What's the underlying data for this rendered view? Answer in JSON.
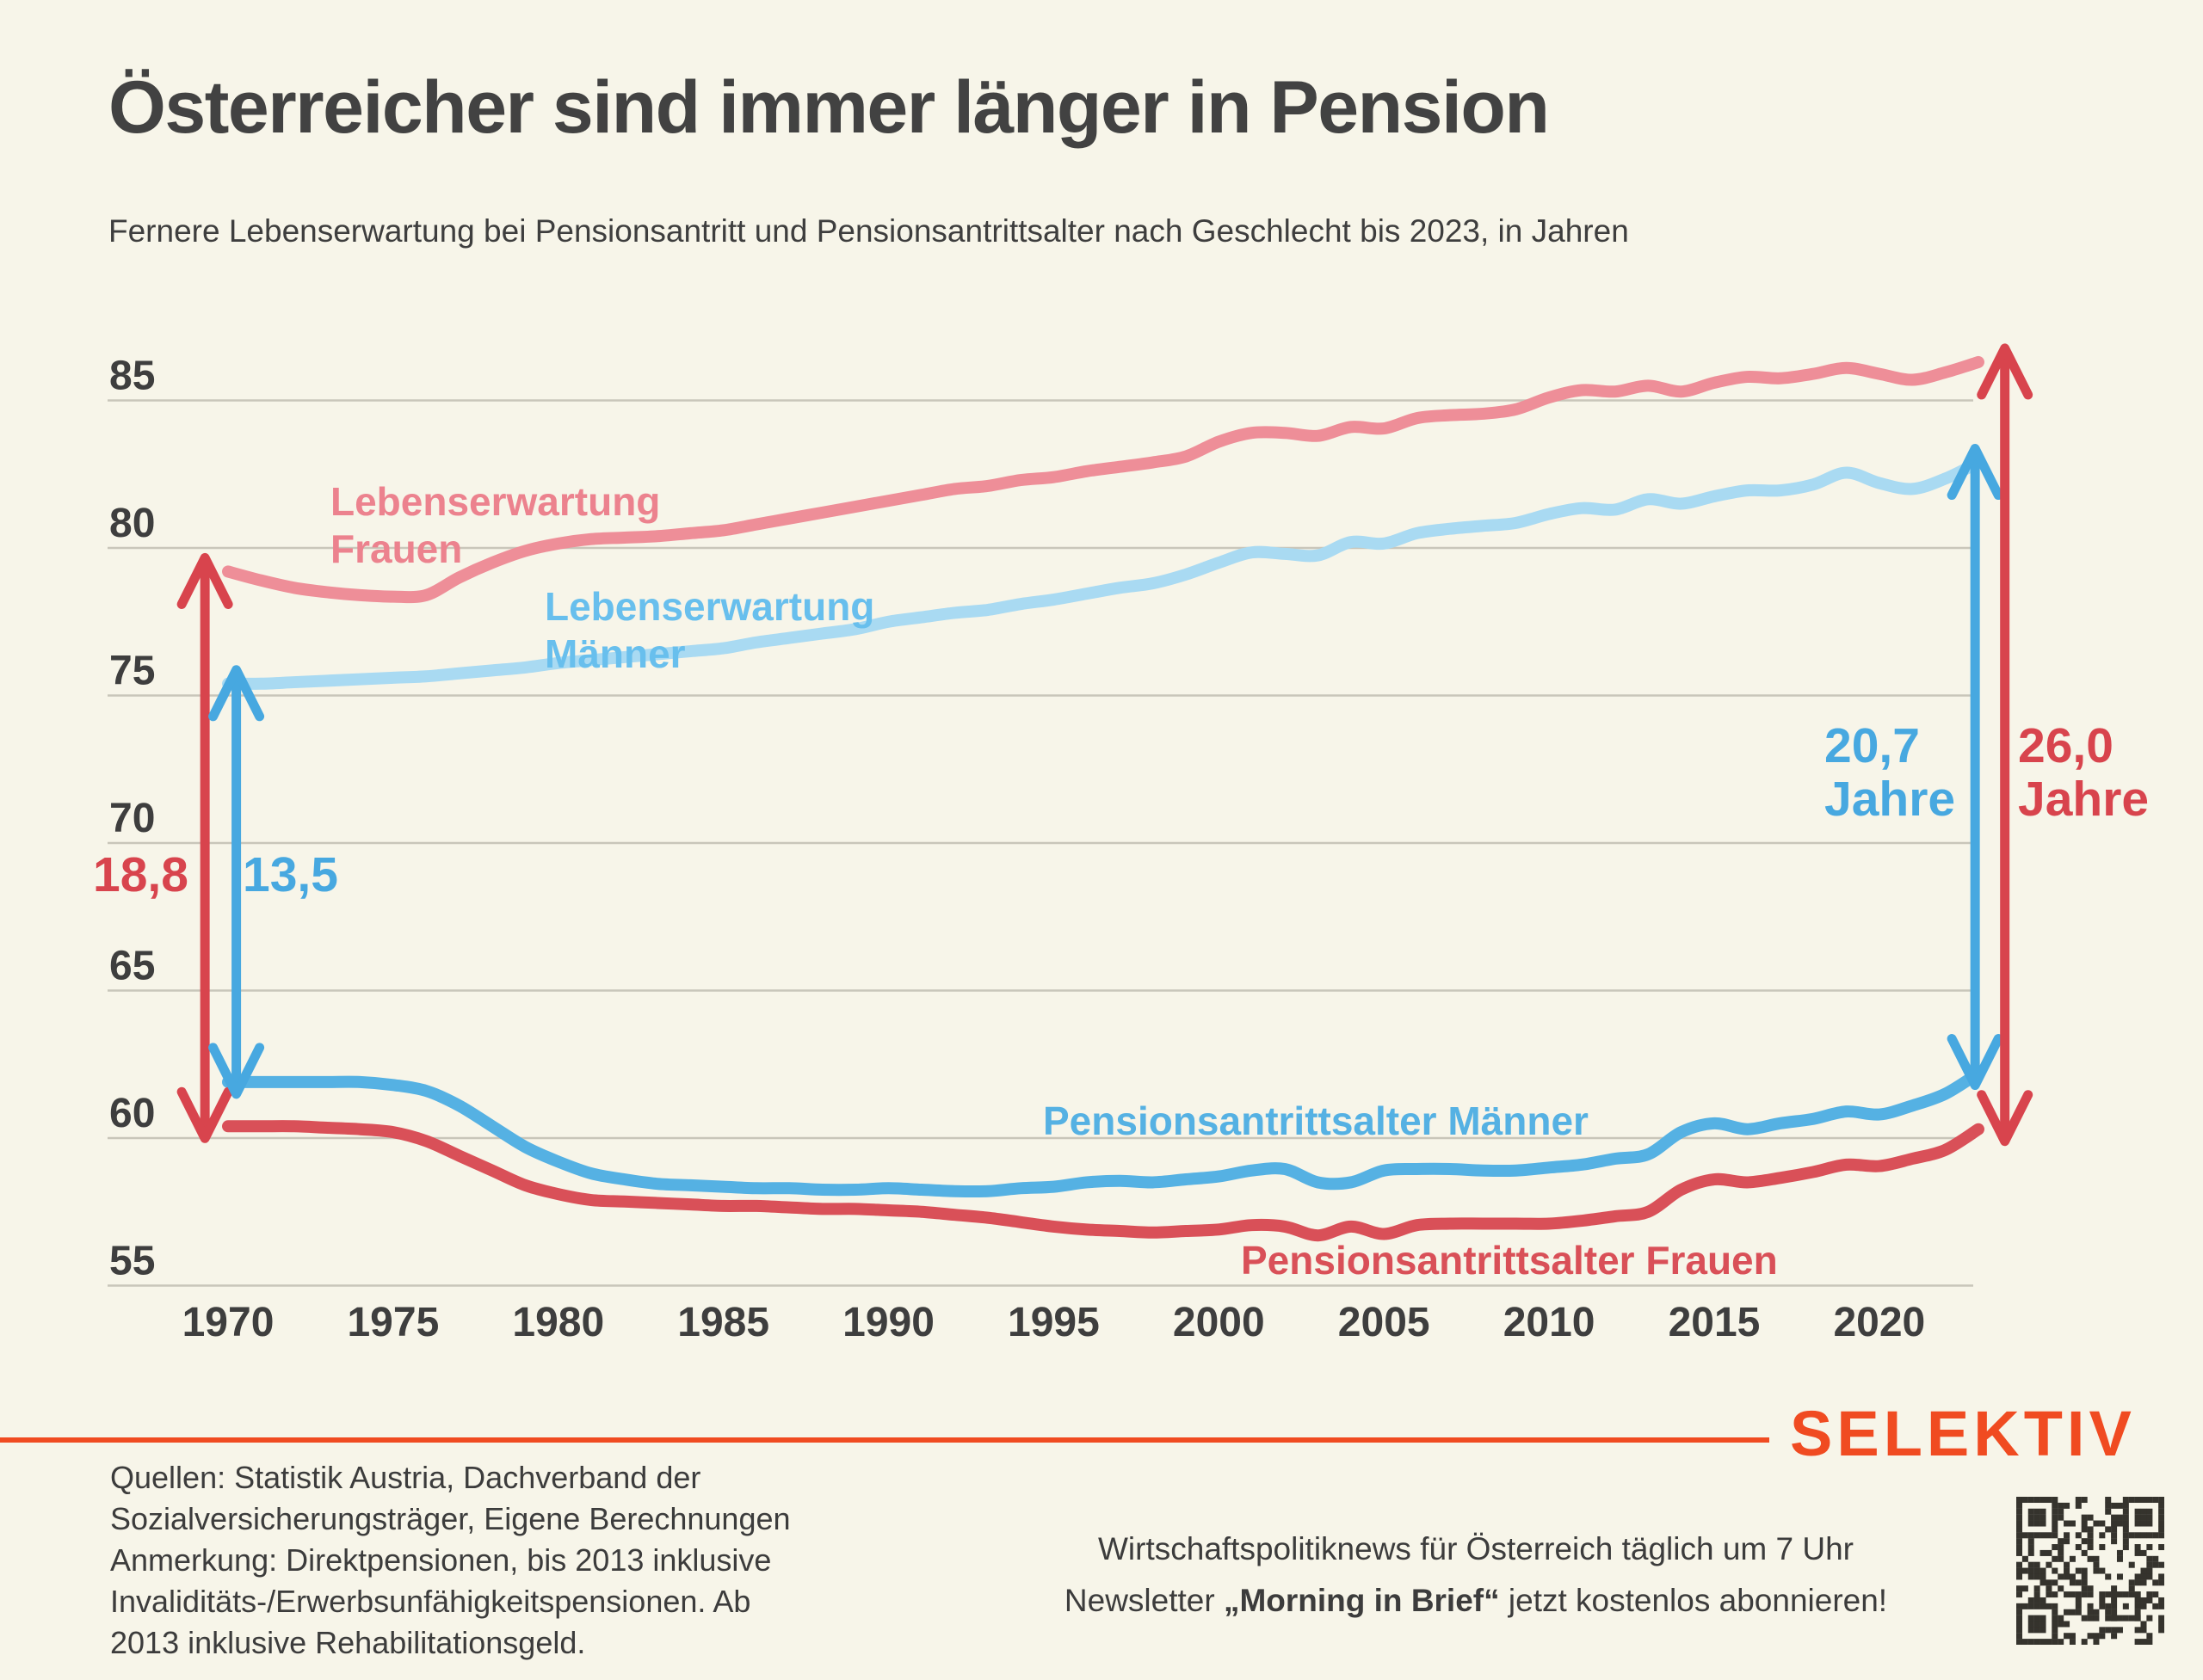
{
  "page": {
    "title": "Österreicher sind immer länger in Pension",
    "subtitle": "Fernere Lebenserwartung bei Pensionsantritt und Pensionsantrittsalter nach Geschlecht bis 2023, in Jahren"
  },
  "colors": {
    "background": "#f7f5e9",
    "text_dark": "#3e3e3e",
    "grid": "#c9c6ba",
    "le_frauen": "#ee8e98",
    "le_maenner": "#a9daf2",
    "pension_maenner": "#55b1e3",
    "pension_frauen": "#d95058",
    "arrow_red": "#d8444d",
    "arrow_blue": "#47a8e0",
    "accent_orange": "#f04b21",
    "qr_dark": "#35332d"
  },
  "chart_data": {
    "type": "line",
    "title": "Österreicher sind immer länger in Pension",
    "xlabel": "",
    "ylabel": "Jahre",
    "grid": true,
    "legend_position": "inline-labels",
    "x_ticks": [
      "1970",
      "1975",
      "1980",
      "1985",
      "1990",
      "1995",
      "2000",
      "2005",
      "2010",
      "2015",
      "2020"
    ],
    "y_ticks": [
      "85",
      "80",
      "75",
      "70",
      "65",
      "60",
      "55"
    ],
    "xlim": [
      1968.5,
      2024.5
    ],
    "ylim": [
      54.5,
      86.5
    ],
    "x": [
      1970,
      1971,
      1972,
      1973,
      1974,
      1975,
      1976,
      1977,
      1978,
      1979,
      1980,
      1981,
      1982,
      1983,
      1984,
      1985,
      1986,
      1987,
      1988,
      1989,
      1990,
      1991,
      1992,
      1993,
      1994,
      1995,
      1996,
      1997,
      1998,
      1999,
      2000,
      2001,
      2002,
      2003,
      2004,
      2005,
      2006,
      2007,
      2008,
      2009,
      2010,
      2011,
      2012,
      2013,
      2014,
      2015,
      2016,
      2017,
      2018,
      2019,
      2020,
      2021,
      2022,
      2023
    ],
    "series": [
      {
        "name": "Lebenserwartung Frauen",
        "color_key": "le_frauen",
        "values": [
          79.2,
          78.9,
          78.65,
          78.5,
          78.4,
          78.35,
          78.4,
          79.0,
          79.5,
          79.9,
          80.15,
          80.3,
          80.35,
          80.4,
          80.5,
          80.6,
          80.8,
          81.0,
          81.2,
          81.4,
          81.6,
          81.8,
          82.0,
          82.1,
          82.3,
          82.4,
          82.6,
          82.75,
          82.9,
          83.1,
          83.6,
          83.9,
          83.9,
          83.8,
          84.1,
          84.05,
          84.4,
          84.5,
          84.55,
          84.7,
          85.1,
          85.35,
          85.3,
          85.5,
          85.3,
          85.6,
          85.8,
          85.75,
          85.9,
          86.1,
          85.9,
          85.7,
          85.95,
          86.3
        ]
      },
      {
        "name": "Lebenserwartung Männer",
        "color_key": "le_maenner",
        "values": [
          75.4,
          75.4,
          75.45,
          75.5,
          75.55,
          75.6,
          75.65,
          75.75,
          75.85,
          75.95,
          76.1,
          76.2,
          76.3,
          76.4,
          76.5,
          76.6,
          76.8,
          76.95,
          77.1,
          77.25,
          77.5,
          77.65,
          77.8,
          77.9,
          78.1,
          78.25,
          78.45,
          78.65,
          78.8,
          79.1,
          79.5,
          79.85,
          79.8,
          79.75,
          80.2,
          80.15,
          80.5,
          80.65,
          80.75,
          80.85,
          81.15,
          81.35,
          81.3,
          81.65,
          81.5,
          81.75,
          81.95,
          81.95,
          82.15,
          82.55,
          82.2,
          82.0,
          82.35,
          82.9
        ]
      },
      {
        "name": "Pensionsantrittsalter Männer",
        "color_key": "pension_maenner",
        "values": [
          61.9,
          61.9,
          61.9,
          61.9,
          61.9,
          61.8,
          61.6,
          61.1,
          60.4,
          59.7,
          59.2,
          58.8,
          58.6,
          58.45,
          58.4,
          58.35,
          58.3,
          58.3,
          58.25,
          58.25,
          58.3,
          58.25,
          58.2,
          58.2,
          58.3,
          58.35,
          58.5,
          58.55,
          58.5,
          58.6,
          58.7,
          58.9,
          58.95,
          58.5,
          58.5,
          58.9,
          58.95,
          58.95,
          58.9,
          58.9,
          59.0,
          59.1,
          59.3,
          59.45,
          60.2,
          60.5,
          60.3,
          60.5,
          60.65,
          60.9,
          60.8,
          61.1,
          61.5,
          62.2
        ]
      },
      {
        "name": "Pensionsantrittsalter Frauen",
        "color_key": "pension_frauen",
        "values": [
          60.4,
          60.4,
          60.4,
          60.35,
          60.3,
          60.2,
          59.9,
          59.4,
          58.9,
          58.4,
          58.1,
          57.9,
          57.85,
          57.8,
          57.75,
          57.7,
          57.7,
          57.65,
          57.6,
          57.6,
          57.55,
          57.5,
          57.4,
          57.3,
          57.15,
          57.0,
          56.9,
          56.85,
          56.8,
          56.85,
          56.9,
          57.05,
          57.0,
          56.7,
          57.0,
          56.75,
          57.05,
          57.1,
          57.1,
          57.1,
          57.1,
          57.2,
          57.35,
          57.5,
          58.25,
          58.6,
          58.5,
          58.65,
          58.85,
          59.1,
          59.05,
          59.3,
          59.6,
          60.3
        ]
      }
    ],
    "annotations": {
      "series_labels": [
        {
          "line1": "Lebenserwartung",
          "line2": "Frauen"
        },
        {
          "line1": "Lebenserwartung",
          "line2": "Männer"
        },
        {
          "line1": "Pensionsantrittsalter Männer"
        },
        {
          "line1": "Pensionsantrittsalter Frauen"
        }
      ],
      "gaps": [
        {
          "line1": "18,8"
        },
        {
          "line1": "13,5"
        },
        {
          "line1": "20,7",
          "line2": "Jahre"
        },
        {
          "line1": "26,0",
          "line2": "Jahre"
        }
      ],
      "arrows": [
        {
          "color": "arrow_red",
          "year": 1969.3,
          "value_from": 60.4,
          "value_to": 79.2
        },
        {
          "color": "arrow_blue",
          "year": 1970.25,
          "value_from": 61.9,
          "value_to": 75.4
        },
        {
          "color": "arrow_blue",
          "year": 2022.9,
          "value_from": 62.2,
          "value_to": 82.9
        },
        {
          "color": "arrow_red",
          "year": 2023.8,
          "value_from": 60.3,
          "value_to": 86.3
        }
      ]
    }
  },
  "footer": {
    "source_lines": [
      "Quellen: Statistik Austria, Dachverband der",
      "Sozialversicherungsträger, Eigene Berechnungen",
      "Anmerkung: Direktpensionen, bis 2013 inklusive",
      "Invaliditäts-/Erwerbsunfähigkeitspensionen. Ab",
      "2013 inklusive Rehabilitationsgeld."
    ],
    "newsletter_line1": "Wirtschaftspolitiknews für Österreich täglich um 7 Uhr",
    "newsletter_line2_prefix": "Newsletter ",
    "newsletter_line2_bold": "„Morning in Brief“",
    "newsletter_line2_suffix": " jetzt kostenlos abonnieren!",
    "logo": "SELEKTIV"
  }
}
